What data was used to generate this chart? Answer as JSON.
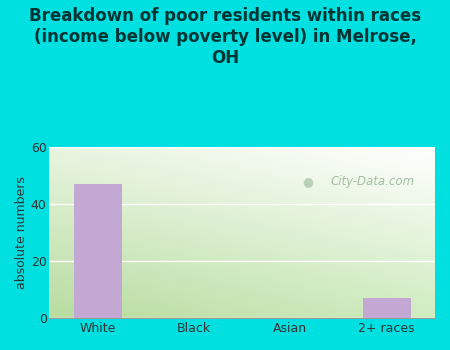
{
  "categories": [
    "White",
    "Black",
    "Asian",
    "2+ races"
  ],
  "values": [
    47,
    0,
    0,
    7
  ],
  "bar_color": "#c4a8d4",
  "title": "Breakdown of poor residents within races\n(income below poverty level) in Melrose,\nOH",
  "ylabel": "absolute numbers",
  "ylim": [
    0,
    60
  ],
  "yticks": [
    0,
    20,
    40,
    60
  ],
  "bg_outer": "#00e0e0",
  "grid_color": "#ffffff",
  "title_fontsize": 12,
  "ylabel_fontsize": 9,
  "xlabel_fontsize": 9,
  "watermark_text": "City-Data.com",
  "watermark_color": "#aabbaa"
}
